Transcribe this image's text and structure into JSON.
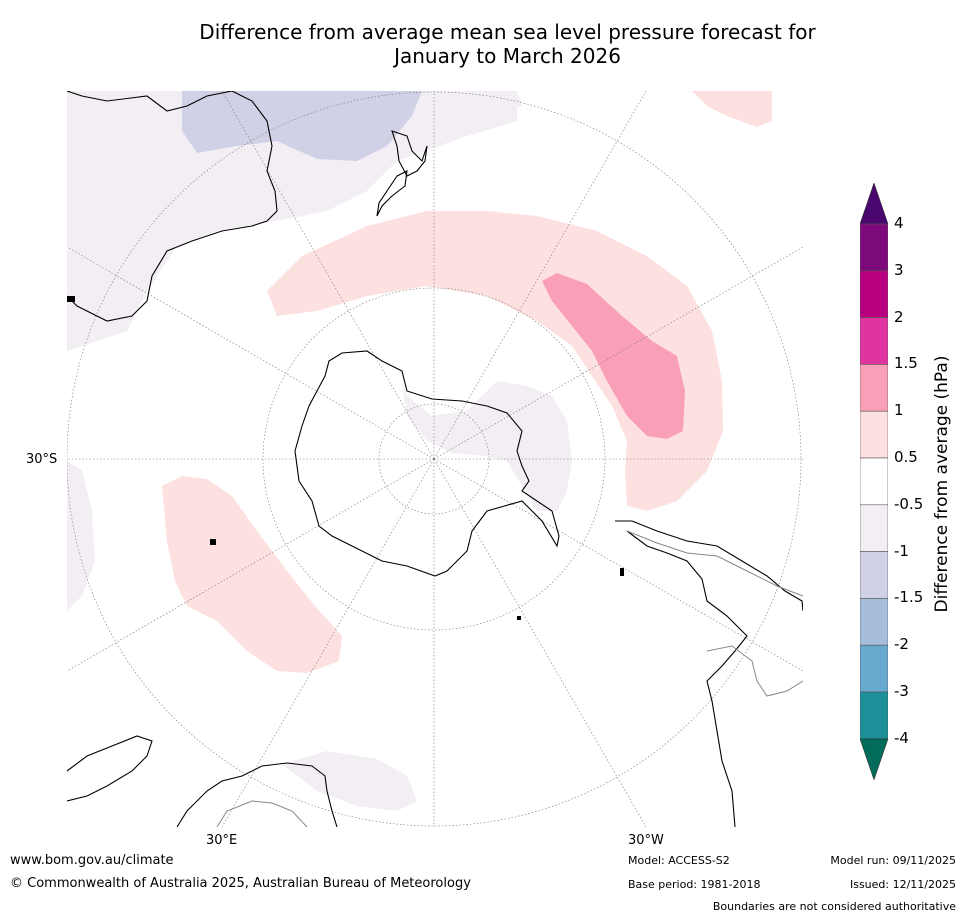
{
  "title_line1": "Difference from average mean sea level pressure forecast for",
  "title_line2": "January to March 2026",
  "map": {
    "projection": "south polar stereographic",
    "labels": {
      "lat": "30°S",
      "lon_east": "30°E",
      "lon_west": "30°W"
    }
  },
  "colorbar": {
    "title": "Difference from average (hPa)",
    "ticks": [
      "4",
      "3",
      "2",
      "1.5",
      "1",
      "0.5",
      "-0.5",
      "-1",
      "-1.5",
      "-2",
      "-3",
      "-4"
    ],
    "colors": {
      "over": "#4b0770",
      "c3_4": "#7d0a7a",
      "c2_3": "#b8007f",
      "c15_2": "#e035a0",
      "c1_15": "#f9a0b8",
      "c05_1": "#fde0e0",
      "neutral": "#ffffff",
      "cm05_m1": "#f2eef4",
      "cm1_m15": "#d0d1e6",
      "cm15_m2": "#a6bddb",
      "cm2_m3": "#67a9cf",
      "cm3_m4": "#1c9099",
      "under": "#016c59"
    }
  },
  "footer": {
    "url": "www.bom.gov.au/climate",
    "copyright": "© Commonwealth of Australia 2025, Australian Bureau of Meteorology",
    "model": "Model: ACCESS-S2",
    "base_period": "Base period: 1981-2018",
    "model_run": "Model run: 09/11/2025",
    "issued": "Issued: 12/11/2025",
    "disclaimer": "Boundaries are not considered authoritative"
  }
}
